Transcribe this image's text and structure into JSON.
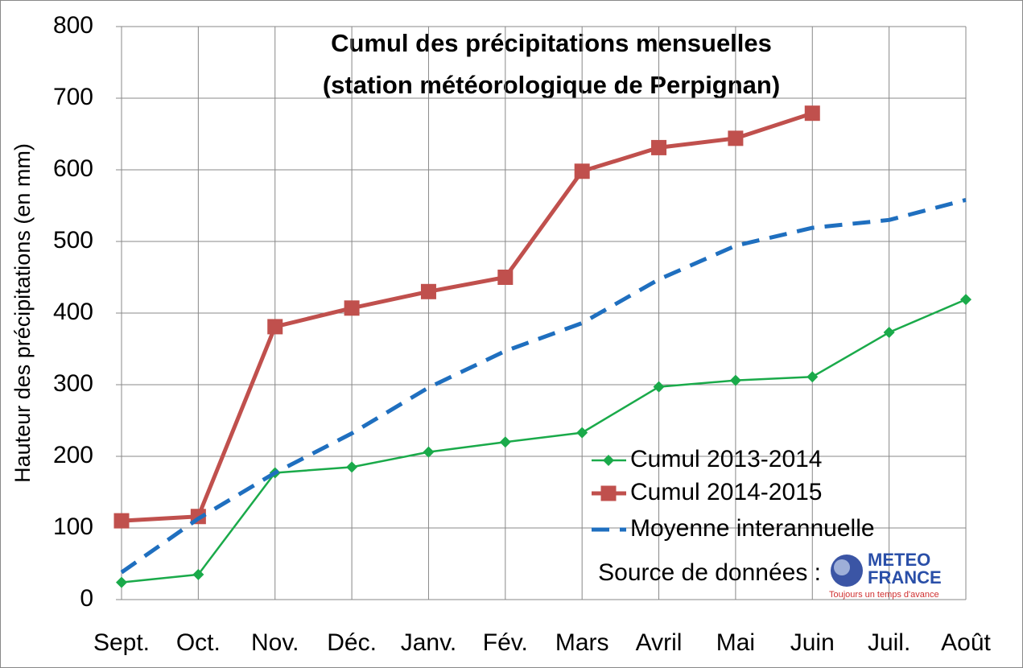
{
  "chart_data": {
    "type": "line",
    "title": [
      "Cumul des précipitations mensuelles",
      "(station météorologique de Perpignan)"
    ],
    "y_label": "Hauteur des précipitations (en mm)",
    "categories": [
      "Sept.",
      "Oct.",
      "Nov.",
      "Déc.",
      "Janv.",
      "Fév.",
      "Mars",
      "Avril",
      "Mai",
      "Juin",
      "Juil.",
      "Août"
    ],
    "series": [
      {
        "name": "Cumul 2013-2014",
        "color": "#1aaa4a",
        "marker": "diamond",
        "dashed": false,
        "values": [
          24,
          35,
          177,
          185,
          206,
          220,
          233,
          297,
          306,
          311,
          373,
          419
        ]
      },
      {
        "name": "Cumul 2014-2015",
        "color": "#c0504d",
        "marker": "square",
        "dashed": false,
        "values": [
          110,
          116,
          381,
          407,
          430,
          450,
          598,
          631,
          644,
          679,
          null,
          null
        ]
      },
      {
        "name": "Moyenne interannuelle",
        "color": "#1f6fbf",
        "marker": "none",
        "dashed": true,
        "values": [
          38,
          113,
          177,
          232,
          296,
          347,
          386,
          447,
          494,
          519,
          530,
          558
        ]
      }
    ],
    "ylim": [
      0,
      800
    ],
    "yticks": [
      0,
      100,
      200,
      300,
      400,
      500,
      600,
      700,
      800
    ],
    "grid": true,
    "source": "Source de données :",
    "logo": {
      "line1": "METEO",
      "line2": "FRANCE",
      "tagline": "Toujours un temps d'avance"
    }
  }
}
